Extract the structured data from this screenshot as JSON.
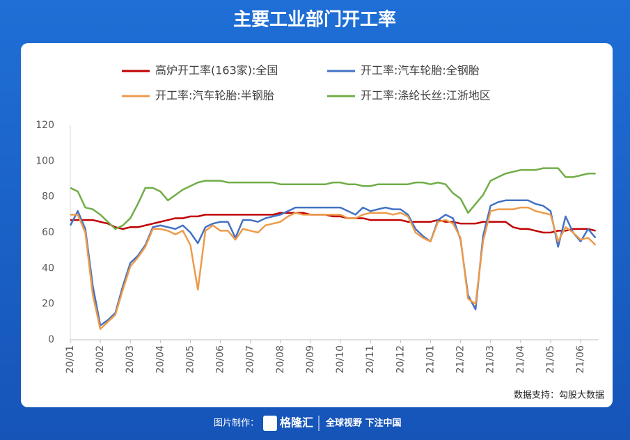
{
  "title": "主要工业部门开工率",
  "chart_data": {
    "type": "line",
    "categories": [
      "20/01",
      null,
      null,
      null,
      "20/02",
      null,
      null,
      null,
      "20/03",
      null,
      null,
      null,
      "20/04",
      null,
      null,
      null,
      "20/05",
      null,
      null,
      null,
      "20/06",
      null,
      null,
      null,
      "20/07",
      null,
      null,
      null,
      "20/08",
      null,
      null,
      null,
      "20/09",
      null,
      null,
      null,
      "20/10",
      null,
      null,
      null,
      "20/11",
      null,
      null,
      null,
      "20/12",
      null,
      null,
      null,
      "21/01",
      null,
      null,
      null,
      "21/02",
      null,
      null,
      null,
      "21/03",
      null,
      null,
      null,
      "21/04",
      null,
      null,
      null,
      "21/05",
      null,
      null,
      null,
      "21/06",
      null,
      null
    ],
    "series": [
      {
        "name": "高炉开工率(163家):全国",
        "color": "#c00000",
        "values": [
          67,
          67,
          67,
          67,
          66,
          65,
          63,
          62,
          63,
          63,
          64,
          65,
          66,
          67,
          68,
          68,
          69,
          69,
          70,
          70,
          70,
          70,
          70,
          70,
          70,
          70,
          70,
          70,
          71,
          71,
          71,
          71,
          70,
          70,
          70,
          69,
          69,
          68,
          68,
          68,
          67,
          67,
          67,
          67,
          67,
          66,
          66,
          66,
          66,
          67,
          66,
          66,
          65,
          65,
          65,
          66,
          66,
          66,
          66,
          63,
          62,
          62,
          61,
          60,
          60,
          61,
          61,
          62,
          62,
          62,
          61
        ]
      },
      {
        "name": "开工率:汽车轮胎:全钢胎",
        "color": "#4472c4",
        "values": [
          64,
          72,
          62,
          30,
          8,
          11,
          15,
          30,
          43,
          47,
          53,
          63,
          64,
          63,
          62,
          64,
          60,
          54,
          63,
          65,
          66,
          66,
          57,
          67,
          67,
          66,
          68,
          69,
          70,
          72,
          74,
          74,
          74,
          74,
          74,
          74,
          74,
          72,
          70,
          74,
          72,
          73,
          74,
          73,
          73,
          70,
          62,
          58,
          55,
          67,
          70,
          68,
          56,
          25,
          17,
          58,
          75,
          77,
          78,
          78,
          78,
          78,
          76,
          75,
          72,
          52,
          69,
          60,
          55,
          62,
          57
        ]
      },
      {
        "name": "开工率:汽车轮胎:半钢胎",
        "color": "#ed9b4a",
        "values": [
          70,
          70,
          60,
          25,
          6,
          10,
          14,
          28,
          41,
          46,
          52,
          62,
          62,
          61,
          59,
          61,
          53,
          28,
          61,
          64,
          61,
          61,
          56,
          62,
          61,
          60,
          64,
          65,
          66,
          69,
          71,
          70,
          70,
          70,
          70,
          70,
          70,
          68,
          68,
          70,
          71,
          71,
          71,
          70,
          71,
          69,
          60,
          57,
          55,
          66,
          67,
          65,
          57,
          23,
          20,
          55,
          72,
          73,
          73,
          73,
          74,
          74,
          72,
          71,
          70,
          55,
          63,
          60,
          56,
          57,
          53
        ]
      },
      {
        "name": "开工率:涤纶长丝:江浙地区",
        "color": "#70ad47",
        "values": [
          85,
          83,
          74,
          73,
          70,
          66,
          62,
          64,
          68,
          76,
          85,
          85,
          83,
          78,
          81,
          84,
          86,
          88,
          89,
          89,
          89,
          88,
          88,
          88,
          88,
          88,
          88,
          88,
          87,
          87,
          87,
          87,
          87,
          87,
          87,
          88,
          88,
          87,
          87,
          86,
          86,
          87,
          87,
          87,
          87,
          87,
          88,
          88,
          87,
          88,
          87,
          82,
          79,
          71,
          76,
          81,
          89,
          91,
          93,
          94,
          95,
          95,
          95,
          96,
          96,
          96,
          91,
          91,
          92,
          93,
          93
        ]
      }
    ],
    "ylim": [
      0,
      120
    ],
    "yticks": [
      0,
      20,
      40,
      60,
      80,
      100,
      120
    ],
    "grid": false,
    "legend": "top",
    "source": "数据支持：勾股大数据"
  },
  "footer": {
    "label": "图片制作：",
    "brand": "格隆汇",
    "slogan": "全球视野 下注中国"
  }
}
